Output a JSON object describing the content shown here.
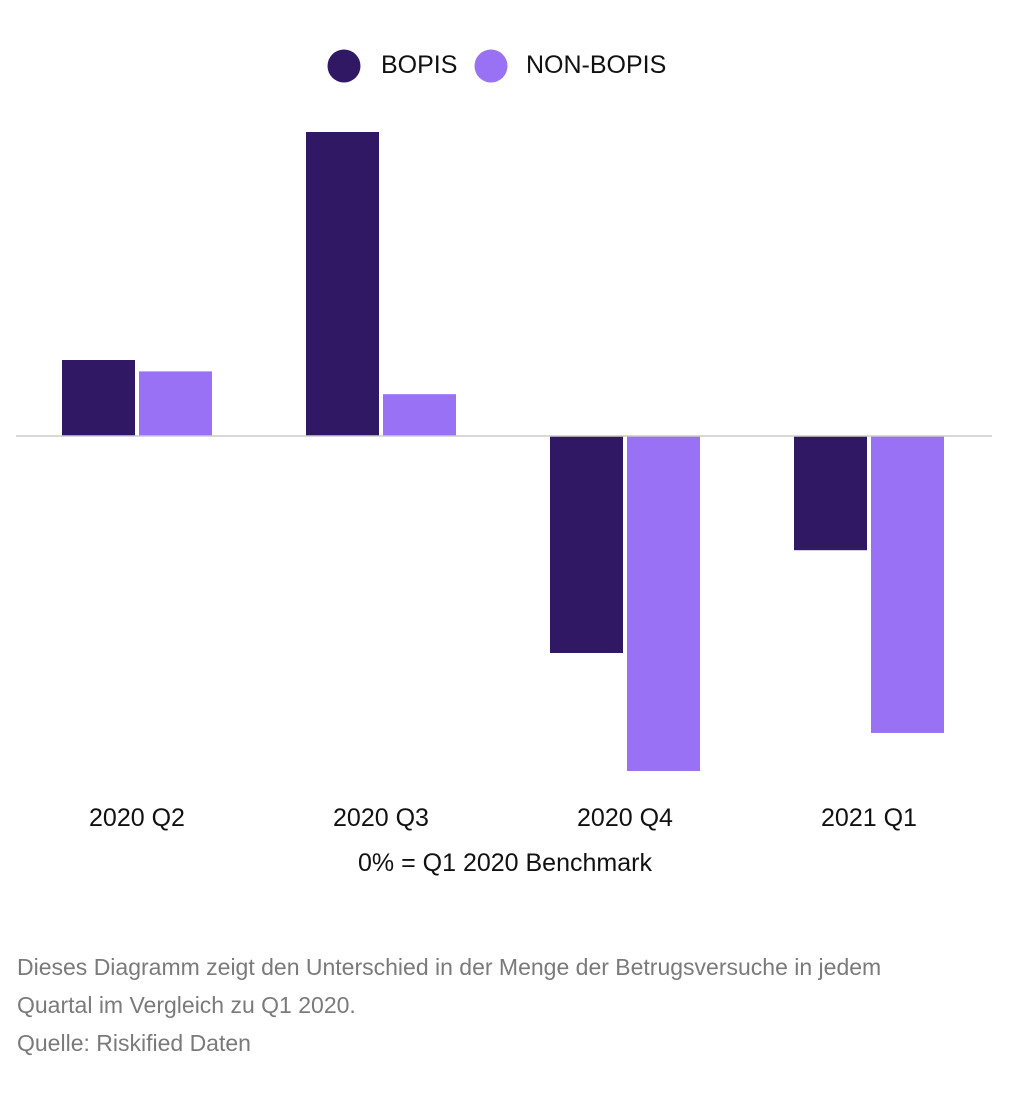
{
  "chart_data": {
    "type": "bar",
    "categories": [
      "2020 Q2",
      "2020 Q3",
      "2020 Q4",
      "2021 Q1"
    ],
    "series": [
      {
        "name": "BOPIS",
        "color": "#311865",
        "values": [
          20,
          80,
          -57,
          -30
        ]
      },
      {
        "name": "NON-BOPIS",
        "color": "#9871f5",
        "values": [
          17,
          11,
          -88,
          -78
        ]
      }
    ],
    "ylim": [
      -88,
      80
    ],
    "xlabel": "0% = Q1 2020 Benchmark",
    "legend_position": "top-center",
    "grid": false,
    "baseline_color": "#cccccc"
  },
  "caption": {
    "lines": [
      "Dieses Diagramm zeigt den Unterschied in der Menge der Betrugsversuche in jedem",
      "Quartal im Vergleich zu Q1 2020.",
      "Quelle: Riskified Daten"
    ]
  }
}
